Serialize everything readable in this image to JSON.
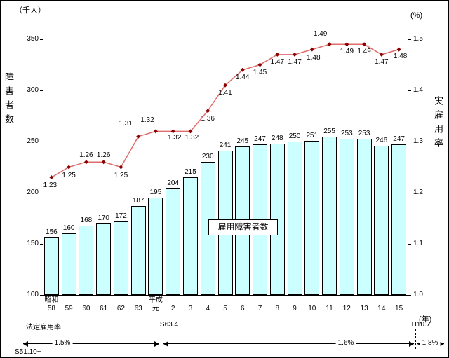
{
  "figure": {
    "unit_left": "（千人）",
    "unit_right": "(%)",
    "axis_left_title": "障害者数",
    "axis_right_title": "実雇用率",
    "axis_x_unit": "(年)",
    "bar_series_label": "雇用障害者数"
  },
  "chart_data": {
    "type": "bar",
    "title": "",
    "categories": [
      {
        "era": "昭和",
        "year": "58"
      },
      {
        "era": "",
        "year": "59"
      },
      {
        "era": "",
        "year": "60"
      },
      {
        "era": "",
        "year": "61"
      },
      {
        "era": "",
        "year": "62"
      },
      {
        "era": "",
        "year": "63"
      },
      {
        "era": "平成",
        "year": "元"
      },
      {
        "era": "",
        "year": "2"
      },
      {
        "era": "",
        "year": "3"
      },
      {
        "era": "",
        "year": "4"
      },
      {
        "era": "",
        "year": "5"
      },
      {
        "era": "",
        "year": "6"
      },
      {
        "era": "",
        "year": "7"
      },
      {
        "era": "",
        "year": "8"
      },
      {
        "era": "",
        "year": "9"
      },
      {
        "era": "",
        "year": "10"
      },
      {
        "era": "",
        "year": "11"
      },
      {
        "era": "",
        "year": "12"
      },
      {
        "era": "",
        "year": "13"
      },
      {
        "era": "",
        "year": "14"
      },
      {
        "era": "",
        "year": "15"
      }
    ],
    "series": [
      {
        "name": "雇用障害者数",
        "kind": "bar",
        "axis": "left",
        "unit": "千人",
        "values": [
          156,
          160,
          168,
          170,
          172,
          187,
          195,
          204,
          215,
          230,
          241,
          245,
          247,
          248,
          250,
          251,
          255,
          253,
          253,
          246,
          247
        ]
      },
      {
        "name": "実雇用率",
        "kind": "line",
        "axis": "right",
        "unit": "%",
        "values": [
          1.23,
          1.25,
          1.26,
          1.26,
          1.25,
          1.31,
          1.32,
          1.32,
          1.32,
          1.36,
          1.41,
          1.44,
          1.45,
          1.47,
          1.47,
          1.48,
          1.49,
          1.49,
          1.49,
          1.47,
          1.48
        ]
      }
    ],
    "left_axis": {
      "min": 100,
      "max": 350,
      "ticks": [
        350,
        300,
        250,
        200,
        150,
        100
      ],
      "label": "障害者数",
      "unit": "（千人）"
    },
    "right_axis": {
      "min": 1.0,
      "max": 1.5,
      "ticks": [
        1.5,
        1.4,
        1.3,
        1.2,
        1.1,
        1.0
      ],
      "label": "実雇用率",
      "unit": "(%)"
    },
    "x_axis": {
      "unit": "(年)"
    },
    "grid": false,
    "legend": "none",
    "colors": {
      "bar_fill": "#ccffff",
      "bar_border": "#000000",
      "line": "#e06c6c",
      "marker": "#8b0000"
    }
  },
  "timeline": {
    "title": "法定雇用率",
    "start_label": "S51.10~",
    "boundaries": [
      "S63.4",
      "H10.7"
    ],
    "segments": [
      {
        "label": "1.5%"
      },
      {
        "label": "1.6%"
      },
      {
        "label": "1.8%"
      }
    ]
  }
}
